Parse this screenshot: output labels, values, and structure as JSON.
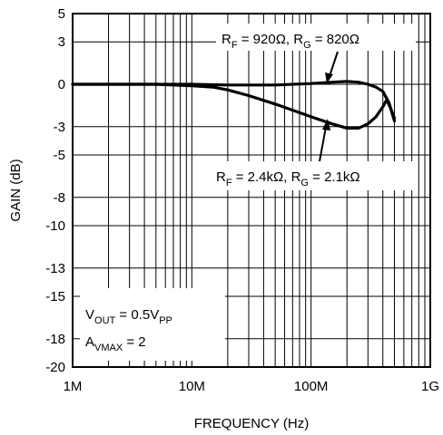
{
  "chart_data": {
    "type": "line",
    "x_scale": "log",
    "xlim": [
      1,
      1000
    ],
    "ylim": [
      -20,
      5
    ],
    "xlabel": "FREQUENCY (Hz)",
    "ylabel": "GAIN (dB)",
    "x_ticks": [
      {
        "value": 1,
        "label": "1M"
      },
      {
        "value": 10,
        "label": "10M"
      },
      {
        "value": 100,
        "label": "100M"
      },
      {
        "value": 1000,
        "label": "1G"
      }
    ],
    "y_ticks": [
      5,
      3,
      0,
      -3,
      -5,
      -8,
      -10,
      -13,
      -15,
      -18,
      -20
    ],
    "y_tick_labels": [
      "5",
      "3",
      "0",
      "-3",
      "-5",
      "-8",
      "-10",
      "-13",
      "-15",
      "-18",
      "-20"
    ],
    "grid": true,
    "series": [
      {
        "name": "RF = 920Ω, RG = 820Ω",
        "label_parts": {
          "a": "R",
          "a_sub": "F",
          "a_val": " = 920Ω, ",
          "b": "R",
          "b_sub": "G",
          "b_val": " = 820Ω"
        },
        "color": "#000000",
        "x": [
          1,
          2,
          5,
          10,
          20,
          50,
          100,
          150,
          200,
          250,
          300,
          350,
          400,
          450,
          500
        ],
        "y": [
          0,
          0,
          0,
          0,
          -0.05,
          -0.05,
          0.05,
          0.15,
          0.2,
          0.15,
          0,
          -0.2,
          -0.5,
          -1.3,
          -2.6
        ]
      },
      {
        "name": "RF = 2.4kΩ, RG = 2.1kΩ",
        "label_parts": {
          "a": "R",
          "a_sub": "F",
          "a_val": " = 2.4kΩ, ",
          "b": "R",
          "b_sub": "G",
          "b_val": " = 2.1kΩ"
        },
        "color": "#000000",
        "x": [
          1,
          2,
          5,
          10,
          15,
          20,
          30,
          50,
          80,
          100,
          150,
          200,
          250,
          300,
          350,
          400,
          430,
          460,
          500
        ],
        "y": [
          0,
          0,
          0,
          -0.1,
          -0.2,
          -0.4,
          -0.8,
          -1.4,
          -2.0,
          -2.3,
          -2.8,
          -3.1,
          -3.1,
          -2.8,
          -2.3,
          -1.6,
          -1.1,
          -1.6,
          -2.4
        ]
      }
    ],
    "annotation": {
      "line1": {
        "a": "V",
        "a_sub": "OUT",
        "a_val": " = 0.5V",
        "b_sub": "PP"
      },
      "line2": {
        "a": "A",
        "a_sub": "VMAX",
        "a_val": " = 2"
      }
    }
  }
}
